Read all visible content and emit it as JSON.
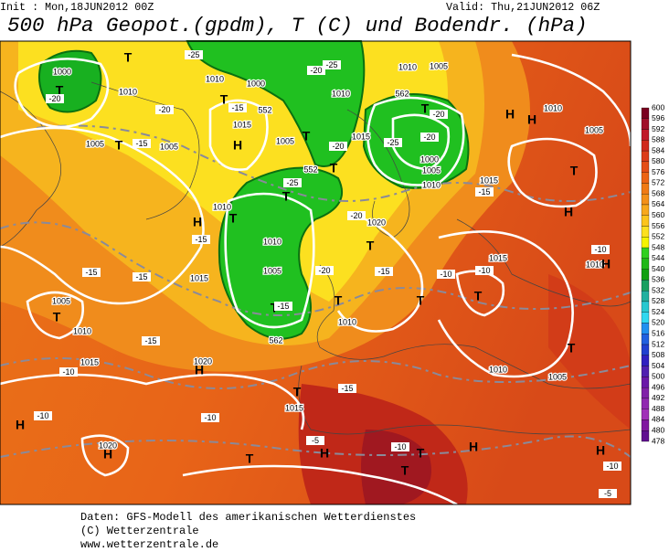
{
  "header": {
    "init": "Init : Mon,18JUN2012 00Z",
    "valid": "Valid: Thu,21JUN2012 06Z",
    "title": "500 hPa Geopot.(gpdm), T (C) und Bodendr. (hPa)"
  },
  "colorbar": {
    "levels": [
      600,
      596,
      592,
      588,
      584,
      580,
      576,
      572,
      568,
      564,
      560,
      556,
      552,
      548,
      544,
      540,
      536,
      532,
      528,
      524,
      520,
      516,
      512,
      508,
      504,
      500,
      496,
      492,
      488,
      484,
      480,
      478
    ],
    "colors": [
      "#7a0020",
      "#a0102a",
      "#c01828",
      "#d02a1c",
      "#dc3c18",
      "#e44e16",
      "#ec6414",
      "#f07a14",
      "#f49018",
      "#f8a81c",
      "#fcc41c",
      "#fce020",
      "#f4f400",
      "#30d020",
      "#20b818",
      "#10a010",
      "#18a060",
      "#20b0a0",
      "#28c8d0",
      "#30d8f0",
      "#2090f0",
      "#2060e0",
      "#2040d0",
      "#3020c0",
      "#5020b0",
      "#6a18a8",
      "#8020a8",
      "#9028b0",
      "#a030b8",
      "#8018a0",
      "#601090",
      "#400878"
    ]
  },
  "map_labels": [
    "1000",
    "T",
    "T",
    "1010",
    "1005",
    "T",
    "1005",
    "H",
    "1010",
    "1015",
    "1000",
    "T",
    "1005",
    "1010",
    "1015",
    "T",
    "T",
    "T",
    "T",
    "1010",
    "H",
    "1010",
    "1005",
    "T",
    "1015",
    "1010",
    "T",
    "1020",
    "T",
    "1010",
    "1005",
    "T",
    "1000",
    "1005",
    "1010",
    "H",
    "1010",
    "H",
    "1005",
    "T",
    "1015",
    "H",
    "1015",
    "1010",
    "H",
    "T",
    "T",
    "1005",
    "1010",
    "T",
    "1005",
    "T",
    "1010",
    "1015",
    "1020",
    "H",
    "1015",
    "T",
    "H",
    "1020",
    "H",
    "T",
    "H",
    "T",
    "T",
    "H",
    "H",
    "1010",
    "552",
    "552",
    "562",
    "562",
    "562"
  ],
  "temp_labels": [
    "-25",
    "-20",
    "-25",
    "-20",
    "-15",
    "-20",
    "-15",
    "-20",
    "-25",
    "-15",
    "-20",
    "-15",
    "-15",
    "-15",
    "-10",
    "-15",
    "-10",
    "-10",
    "-10",
    "-15",
    "-20",
    "-25",
    "-10",
    "-10",
    "-5",
    "-10",
    "-15",
    "-10",
    "-5",
    "-20",
    "-15",
    "-20"
  ],
  "footer": [
    "Daten: GFS-Modell des amerikanischen Wetterdienstes",
    "(C) Wetterzentrale",
    "www.wetterzentrale.de"
  ]
}
